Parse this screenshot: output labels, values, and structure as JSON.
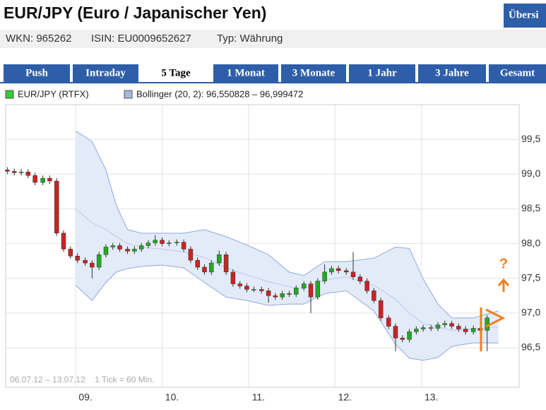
{
  "header": {
    "title": "EUR/JPY (Euro / Japanischer Yen)",
    "button": "Übersi",
    "info": [
      "WKN: 965262",
      "ISIN: EU0009652627",
      "Typ: Währung"
    ]
  },
  "tabs": [
    "Push",
    "Intraday",
    "5 Tage",
    "1 Monat",
    "3 Monate",
    "1 Jahr",
    "3 Jahre",
    "Gesamt"
  ],
  "active_tab": 2,
  "chart_data": {
    "type": "candlestick",
    "legend": [
      {
        "name": "EUR/JPY (RTFX)",
        "color": "#33cc33"
      },
      {
        "name": "Bollinger (20, 2): 96,550828 – 96,999472",
        "color": "#a8b8dc"
      }
    ],
    "up_color": "#22aa22",
    "down_color": "#cc2222",
    "x": [
      8.21,
      8.29,
      8.37,
      8.45,
      8.53,
      8.62,
      8.7,
      8.78,
      8.86,
      8.94,
      9.02,
      9.11,
      9.19,
      9.27,
      9.35,
      9.43,
      9.51,
      9.6,
      9.68,
      9.76,
      9.84,
      9.92,
      10.0,
      10.08,
      10.17,
      10.25,
      10.33,
      10.41,
      10.49,
      10.57,
      10.66,
      10.74,
      10.82,
      10.9,
      10.98,
      11.06,
      11.15,
      11.23,
      11.31,
      11.39,
      11.47,
      11.55,
      11.64,
      11.72,
      11.8,
      11.88,
      11.96,
      12.04,
      12.13,
      12.21,
      12.29,
      12.37,
      12.45,
      12.53,
      12.62,
      12.7,
      12.78,
      12.86,
      12.94,
      13.02,
      13.11,
      13.19,
      13.27,
      13.35,
      13.43,
      13.51,
      13.6,
      13.68,
      13.76
    ],
    "open": [
      99.06,
      99.04,
      99.02,
      99.03,
      98.98,
      98.88,
      98.94,
      98.9,
      98.15,
      97.92,
      97.82,
      97.76,
      97.72,
      97.66,
      97.84,
      97.95,
      97.97,
      97.92,
      97.89,
      97.92,
      97.97,
      98.01,
      98.05,
      98.0,
      98.01,
      98.02,
      97.92,
      97.76,
      97.66,
      97.59,
      97.72,
      97.84,
      97.59,
      97.42,
      97.39,
      97.34,
      97.34,
      97.32,
      97.25,
      97.23,
      97.28,
      97.27,
      97.36,
      97.42,
      97.23,
      97.46,
      97.59,
      97.64,
      97.61,
      97.59,
      97.52,
      97.46,
      97.32,
      97.18,
      96.93,
      96.81,
      96.64,
      96.62,
      96.73,
      96.77,
      96.79,
      96.78,
      96.83,
      96.85,
      96.81,
      96.77,
      96.73,
      96.78,
      96.75
    ],
    "high": [
      99.1,
      99.08,
      99.07,
      99.07,
      99.02,
      98.98,
      98.98,
      98.94,
      98.19,
      97.96,
      97.86,
      97.8,
      97.76,
      97.88,
      97.99,
      98.01,
      98.01,
      97.96,
      97.96,
      98.01,
      98.05,
      98.12,
      98.09,
      98.05,
      98.06,
      98.06,
      97.96,
      97.8,
      97.7,
      97.76,
      97.9,
      97.88,
      97.63,
      97.46,
      97.43,
      97.38,
      97.38,
      97.36,
      97.29,
      97.32,
      97.32,
      97.4,
      97.46,
      97.46,
      97.5,
      97.7,
      97.68,
      97.68,
      97.65,
      97.88,
      97.56,
      97.5,
      97.36,
      97.22,
      96.97,
      96.85,
      96.68,
      96.77,
      96.81,
      96.83,
      96.83,
      96.87,
      96.89,
      96.89,
      96.85,
      96.81,
      96.82,
      96.82,
      96.97
    ],
    "low": [
      99.0,
      98.98,
      98.98,
      98.94,
      98.84,
      98.84,
      98.86,
      98.11,
      97.88,
      97.78,
      97.72,
      97.68,
      97.5,
      97.62,
      97.8,
      97.91,
      97.88,
      97.85,
      97.85,
      97.88,
      97.93,
      97.97,
      97.96,
      97.96,
      97.97,
      97.88,
      97.72,
      97.62,
      97.55,
      97.55,
      97.68,
      97.55,
      97.38,
      97.35,
      97.3,
      97.3,
      97.28,
      97.15,
      97.19,
      97.19,
      97.23,
      97.23,
      97.32,
      97.0,
      97.19,
      97.42,
      97.55,
      97.57,
      97.55,
      97.48,
      97.42,
      97.28,
      97.14,
      96.89,
      96.77,
      96.45,
      96.58,
      96.58,
      96.69,
      96.73,
      96.74,
      96.74,
      96.79,
      96.77,
      96.73,
      96.69,
      96.69,
      96.71,
      96.45
    ],
    "close": [
      99.04,
      99.02,
      99.03,
      98.98,
      98.88,
      98.94,
      98.9,
      98.15,
      97.92,
      97.82,
      97.76,
      97.72,
      97.66,
      97.84,
      97.95,
      97.97,
      97.92,
      97.89,
      97.92,
      97.97,
      98.01,
      98.05,
      98.0,
      98.01,
      98.02,
      97.92,
      97.76,
      97.66,
      97.59,
      97.72,
      97.84,
      97.59,
      97.42,
      97.39,
      97.34,
      97.34,
      97.32,
      97.25,
      97.23,
      97.28,
      97.27,
      97.36,
      97.42,
      97.23,
      97.46,
      97.59,
      97.64,
      97.61,
      97.59,
      97.52,
      97.46,
      97.32,
      97.18,
      96.93,
      96.81,
      96.64,
      96.62,
      96.73,
      96.77,
      96.79,
      96.78,
      96.83,
      96.85,
      96.81,
      96.77,
      96.73,
      96.78,
      96.75,
      96.93
    ],
    "bands": {
      "color": "#8fa8dc",
      "fill": "#e3ebf9",
      "x": [
        9.0,
        9.19,
        9.35,
        9.47,
        9.6,
        9.76,
        10.0,
        10.25,
        10.49,
        10.74,
        10.98,
        11.23,
        11.47,
        11.64,
        11.88,
        12.13,
        12.45,
        12.7,
        12.86,
        13.02,
        13.19,
        13.35,
        13.6,
        13.89
      ],
      "upper": [
        99.62,
        99.47,
        99.06,
        98.55,
        98.2,
        98.15,
        98.15,
        98.15,
        98.2,
        98.1,
        97.98,
        97.84,
        97.59,
        97.54,
        97.74,
        97.74,
        97.79,
        97.95,
        97.93,
        97.49,
        97.13,
        96.93,
        96.93,
        97.03
      ],
      "middle": [
        98.5,
        98.3,
        98.2,
        98.1,
        98.0,
        97.95,
        97.92,
        97.88,
        97.8,
        97.65,
        97.55,
        97.45,
        97.38,
        97.35,
        97.48,
        97.52,
        97.4,
        97.2,
        97.0,
        96.85,
        96.8,
        96.75,
        96.77,
        96.8
      ],
      "lower": [
        97.4,
        97.18,
        97.44,
        97.59,
        97.64,
        97.67,
        97.69,
        97.65,
        97.44,
        97.23,
        97.18,
        97.11,
        97.13,
        97.13,
        97.28,
        97.32,
        97.03,
        96.55,
        96.35,
        96.32,
        96.36,
        96.52,
        96.57,
        96.57
      ]
    },
    "xlim": [
      8.19,
      14.13
    ],
    "xticks": [
      {
        "value": 9,
        "label": "09."
      },
      {
        "value": 10,
        "label": "10."
      },
      {
        "value": 11,
        "label": "11."
      },
      {
        "value": 12,
        "label": "12."
      },
      {
        "value": 13,
        "label": "13."
      }
    ],
    "ylim": [
      95.93,
      100.0
    ],
    "yticks": [
      {
        "value": 96.5,
        "label": "96,5"
      },
      {
        "value": 97,
        "label": "97,0"
      },
      {
        "value": 97.5,
        "label": "97,5"
      },
      {
        "value": 98,
        "label": "98,0"
      },
      {
        "value": 98.5,
        "label": "98,5"
      },
      {
        "value": 99,
        "label": "99,0"
      },
      {
        "value": 99.5,
        "label": "99,5"
      }
    ],
    "grid": true,
    "annotation": "06.07.12 – 13.07.12    1 Tick = 60 Min.",
    "marker": "?"
  }
}
